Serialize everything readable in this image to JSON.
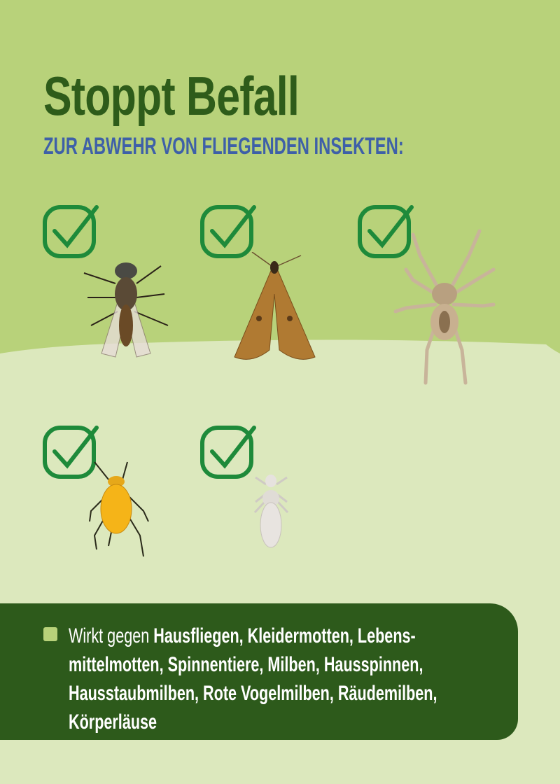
{
  "colors": {
    "top_background": "#b8d27a",
    "bottom_background": "#dce8bd",
    "panel": "#2d5a1b",
    "title": "#2e5c1a",
    "subtitle": "#3e60a8",
    "check": "#1e8a3a"
  },
  "title": "Stoppt Befall",
  "subtitle": "ZUR ABWEHR VON FLIEGENDEN INSEKTEN:",
  "pests": [
    {
      "icon": "check-icon",
      "image": "fly"
    },
    {
      "icon": "check-icon",
      "image": "moth"
    },
    {
      "icon": "check-icon",
      "image": "spider"
    },
    {
      "icon": "check-icon",
      "image": "aphid-mite"
    },
    {
      "icon": "check-icon",
      "image": "louse"
    }
  ],
  "info": {
    "lead": "Wirkt gegen ",
    "line1": "Hausfliegen, Kleidermotten, Lebens-",
    "line2": "mittelmotten, Spinnentiere, Milben, Hausspinnen,",
    "line3": "Hausstaubmilben, Rote Vogelmilben, Räudemilben,",
    "line4": "Körperläuse"
  }
}
